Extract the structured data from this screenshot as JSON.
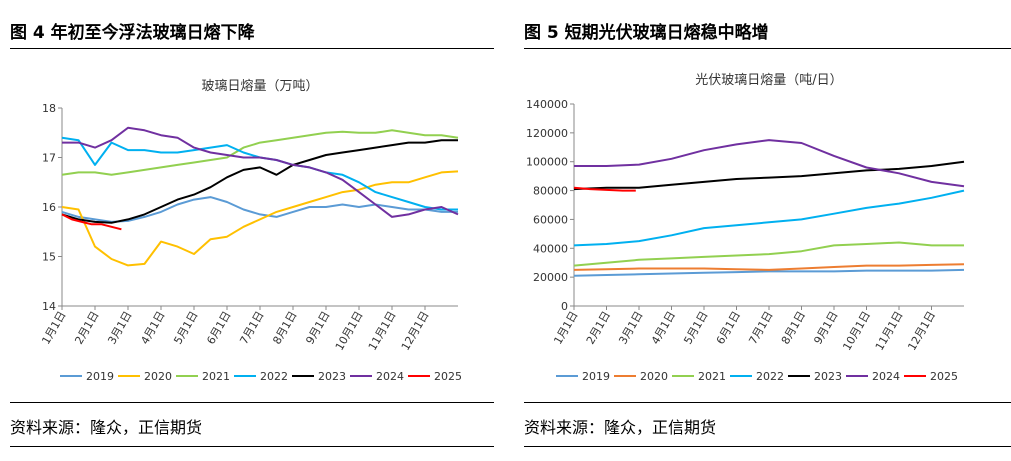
{
  "panels": [
    {
      "figure_title": "图 4  年初至今浮法玻璃日熔下降",
      "source": "资料来源：隆众，正信期货",
      "chart_data": {
        "type": "line",
        "title": "玻璃日熔量（万吨）",
        "xlabel": "",
        "ylabel": "",
        "ylim": [
          14,
          18
        ],
        "yticks": [
          14,
          15,
          16,
          17,
          18
        ],
        "xticks": [
          "1月1日",
          "2月1日",
          "3月1日",
          "4月1日",
          "5月1日",
          "6月1日",
          "7月1日",
          "8月1日",
          "9月1日",
          "10月1日",
          "11月1日",
          "12月1日"
        ],
        "legend_position": "bottom",
        "series": [
          {
            "name": "2019",
            "color": "#5b9bd5",
            "x": [
              0,
              0.5,
              1,
              1.5,
              2,
              2.5,
              3,
              3.5,
              4,
              4.5,
              5,
              5.5,
              6,
              6.5,
              7,
              7.5,
              8,
              8.5,
              9,
              9.5,
              10,
              10.5,
              11,
              11.5,
              12
            ],
            "y": [
              15.9,
              15.8,
              15.75,
              15.7,
              15.72,
              15.8,
              15.9,
              16.05,
              16.15,
              16.2,
              16.1,
              15.95,
              15.85,
              15.8,
              15.9,
              16.0,
              16.0,
              16.05,
              16.0,
              16.05,
              16.0,
              15.95,
              15.95,
              15.9,
              15.9
            ]
          },
          {
            "name": "2020",
            "color": "#ffc000",
            "x": [
              0,
              0.5,
              1,
              1.5,
              2,
              2.5,
              3,
              3.5,
              4,
              4.5,
              5,
              5.5,
              6,
              6.5,
              7,
              7.5,
              8,
              8.5,
              9,
              9.5,
              10,
              10.5,
              11,
              11.5,
              12
            ],
            "y": [
              16.0,
              15.95,
              15.2,
              14.95,
              14.82,
              14.85,
              15.3,
              15.2,
              15.05,
              15.35,
              15.4,
              15.6,
              15.75,
              15.9,
              16.0,
              16.1,
              16.2,
              16.3,
              16.35,
              16.45,
              16.5,
              16.5,
              16.6,
              16.7,
              16.72
            ]
          },
          {
            "name": "2021",
            "color": "#92d050",
            "x": [
              0,
              0.5,
              1,
              1.5,
              2,
              2.5,
              3,
              3.5,
              4,
              4.5,
              5,
              5.5,
              6,
              6.5,
              7,
              7.5,
              8,
              8.5,
              9,
              9.5,
              10,
              10.5,
              11,
              11.5,
              12
            ],
            "y": [
              16.65,
              16.7,
              16.7,
              16.65,
              16.7,
              16.75,
              16.8,
              16.85,
              16.9,
              16.95,
              17.0,
              17.2,
              17.3,
              17.35,
              17.4,
              17.45,
              17.5,
              17.52,
              17.5,
              17.5,
              17.55,
              17.5,
              17.45,
              17.45,
              17.4
            ]
          },
          {
            "name": "2022",
            "color": "#00b0f0",
            "x": [
              0,
              0.5,
              1,
              1.5,
              2,
              2.5,
              3,
              3.5,
              4,
              4.5,
              5,
              5.5,
              6,
              6.5,
              7,
              7.5,
              8,
              8.5,
              9,
              9.5,
              10,
              10.5,
              11,
              11.5,
              12
            ],
            "y": [
              17.4,
              17.35,
              16.85,
              17.3,
              17.15,
              17.15,
              17.1,
              17.1,
              17.15,
              17.2,
              17.25,
              17.1,
              17.0,
              16.95,
              16.85,
              16.8,
              16.7,
              16.65,
              16.5,
              16.3,
              16.2,
              16.1,
              16.0,
              15.95,
              15.95
            ]
          },
          {
            "name": "2023",
            "color": "#000000",
            "x": [
              0,
              0.5,
              1,
              1.5,
              2,
              2.5,
              3,
              3.5,
              4,
              4.5,
              5,
              5.5,
              6,
              6.5,
              7,
              7.5,
              8,
              8.5,
              9,
              9.5,
              10,
              10.5,
              11,
              11.5,
              12
            ],
            "y": [
              15.85,
              15.75,
              15.7,
              15.68,
              15.75,
              15.85,
              16.0,
              16.15,
              16.25,
              16.4,
              16.6,
              16.75,
              16.8,
              16.65,
              16.85,
              16.95,
              17.05,
              17.1,
              17.15,
              17.2,
              17.25,
              17.3,
              17.3,
              17.35,
              17.35
            ]
          },
          {
            "name": "2024",
            "color": "#7030a0",
            "x": [
              0,
              0.5,
              1,
              1.5,
              2,
              2.5,
              3,
              3.5,
              4,
              4.5,
              5,
              5.5,
              6,
              6.5,
              7,
              7.5,
              8,
              8.5,
              9,
              9.5,
              10,
              10.5,
              11,
              11.5,
              12
            ],
            "y": [
              17.3,
              17.3,
              17.2,
              17.35,
              17.6,
              17.55,
              17.45,
              17.4,
              17.2,
              17.1,
              17.05,
              17.0,
              17.0,
              16.95,
              16.85,
              16.8,
              16.7,
              16.55,
              16.3,
              16.05,
              15.8,
              15.85,
              15.95,
              16.0,
              15.85
            ]
          },
          {
            "name": "2025",
            "color": "#ff0000",
            "x": [
              0,
              0.3,
              0.6,
              0.9,
              1.2,
              1.5,
              1.8
            ],
            "y": [
              15.85,
              15.75,
              15.7,
              15.65,
              15.65,
              15.6,
              15.55
            ]
          }
        ]
      }
    },
    {
      "figure_title": "图 5   短期光伏玻璃日熔稳中略增",
      "source": "资料来源：隆众，正信期货",
      "chart_data": {
        "type": "line",
        "title": "光伏玻璃日熔量（吨/日）",
        "xlabel": "",
        "ylabel": "",
        "ylim": [
          0,
          140000
        ],
        "yticks": [
          0,
          20000,
          40000,
          60000,
          80000,
          100000,
          120000,
          140000
        ],
        "xticks": [
          "1月1日",
          "2月1日",
          "3月1日",
          "4月1日",
          "5月1日",
          "6月1日",
          "7月1日",
          "8月1日",
          "9月1日",
          "10月1日",
          "11月1日",
          "12月1日"
        ],
        "legend_position": "bottom",
        "series": [
          {
            "name": "2019",
            "color": "#5b9bd5",
            "x": [
              0,
              1,
              2,
              3,
              4,
              5,
              6,
              7,
              8,
              9,
              10,
              11,
              12
            ],
            "y": [
              21000,
              21500,
              22000,
              22500,
              23000,
              23500,
              24000,
              24000,
              24000,
              24500,
              24500,
              24500,
              25000
            ]
          },
          {
            "name": "2020",
            "color": "#ed7d31",
            "x": [
              0,
              1,
              2,
              3,
              4,
              5,
              6,
              7,
              8,
              9,
              10,
              11,
              12
            ],
            "y": [
              25000,
              25500,
              26000,
              26000,
              26000,
              25500,
              25000,
              26000,
              27000,
              28000,
              28000,
              28500,
              29000
            ]
          },
          {
            "name": "2021",
            "color": "#92d050",
            "x": [
              0,
              1,
              2,
              3,
              4,
              5,
              6,
              7,
              8,
              9,
              10,
              11,
              12
            ],
            "y": [
              28000,
              30000,
              32000,
              33000,
              34000,
              35000,
              36000,
              38000,
              42000,
              43000,
              44000,
              42000,
              42000
            ]
          },
          {
            "name": "2022",
            "color": "#00b0f0",
            "x": [
              0,
              1,
              2,
              3,
              4,
              5,
              6,
              7,
              8,
              9,
              10,
              11,
              12
            ],
            "y": [
              42000,
              43000,
              45000,
              49000,
              54000,
              56000,
              58000,
              60000,
              64000,
              68000,
              71000,
              75000,
              80000
            ]
          },
          {
            "name": "2023",
            "color": "#000000",
            "x": [
              0,
              1,
              2,
              3,
              4,
              5,
              6,
              7,
              8,
              9,
              10,
              11,
              12
            ],
            "y": [
              81000,
              82000,
              82000,
              84000,
              86000,
              88000,
              89000,
              90000,
              92000,
              94000,
              95000,
              97000,
              100000
            ]
          },
          {
            "name": "2024",
            "color": "#7030a0",
            "x": [
              0,
              1,
              2,
              3,
              4,
              5,
              6,
              7,
              8,
              9,
              10,
              11,
              12
            ],
            "y": [
              97000,
              97000,
              98000,
              102000,
              108000,
              112000,
              115000,
              113000,
              104000,
              96000,
              92000,
              86000,
              83000
            ]
          },
          {
            "name": "2025",
            "color": "#ff0000",
            "x": [
              0,
              0.5,
              1,
              1.5,
              1.9
            ],
            "y": [
              82000,
              81000,
              80500,
              80000,
              80000
            ]
          }
        ]
      }
    }
  ]
}
